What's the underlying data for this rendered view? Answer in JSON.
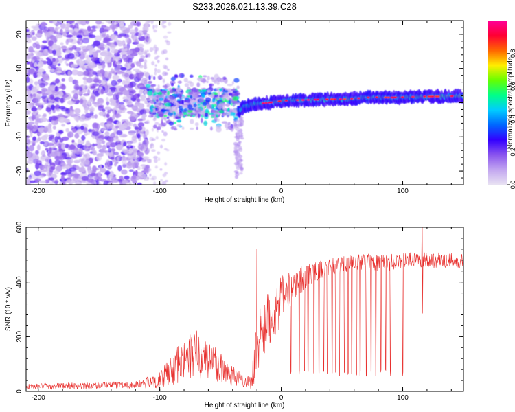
{
  "title": "S233.2026.021.13.39.C28",
  "colors": {
    "snr_line": "#e8302e",
    "spectrogram_low": "#d7c2f7",
    "spectrogram_mid": "#5a12e8",
    "axis": "#000000"
  },
  "chart_data": [
    {
      "id": "spectrogram",
      "type": "heatmap",
      "title": "S233.2026.021.13.39.C28",
      "xlabel": "Height of straight line (km)",
      "ylabel": "Frequency (Hz)",
      "xlim": [
        -210,
        150
      ],
      "ylim": [
        -24,
        24
      ],
      "xticks": [
        -200,
        -100,
        0,
        100
      ],
      "yticks": [
        -20,
        -10,
        0,
        10,
        20
      ],
      "colorbar": {
        "label": "Normalized spectral amplitude",
        "range": [
          0,
          1
        ],
        "ticks": [
          "0.0",
          "0.2",
          "0.4",
          "0.6",
          "0.8"
        ],
        "tick_values": [
          0.0,
          0.2,
          0.4,
          0.6,
          0.8
        ],
        "colormap": [
          "#e8e2f2",
          "#c2a6f0",
          "#8a55ee",
          "#3300ff",
          "#0066ff",
          "#00ccff",
          "#00ff88",
          "#66ff00",
          "#ffee00",
          "#ff6600",
          "#ff0033",
          "#ff0099"
        ]
      },
      "ridge": {
        "x": [
          -35,
          -30,
          -20,
          -10,
          0,
          10,
          20,
          30,
          40,
          50,
          60,
          70,
          80,
          90,
          100,
          110,
          120,
          130,
          140,
          150
        ],
        "freq": [
          -2.5,
          -1.0,
          -0.3,
          0.0,
          0.5,
          0.7,
          0.8,
          0.9,
          1.0,
          1.0,
          1.2,
          1.5,
          1.6,
          1.5,
          1.6,
          1.7,
          1.8,
          1.8,
          1.9,
          2.0
        ],
        "peak_amplitude": [
          0.35,
          0.55,
          0.7,
          0.75,
          0.8,
          0.85,
          0.85,
          0.85,
          0.9,
          0.9,
          0.85,
          0.85,
          0.9,
          0.9,
          0.85,
          0.85,
          0.8,
          0.8,
          0.8,
          0.85
        ]
      },
      "regions": [
        {
          "x": [
            -210,
            -110
          ],
          "description": "diffuse noise",
          "amplitude": 0.12,
          "freq_spread": 24
        },
        {
          "x": [
            -110,
            -35
          ],
          "description": "scattered signal",
          "amplitude": 0.3,
          "freq_spread": 8
        }
      ]
    },
    {
      "id": "snr",
      "type": "line",
      "xlabel": "Height of straight line (km)",
      "ylabel": "SNR (10 * v/v)",
      "xlim": [
        -210,
        150
      ],
      "ylim": [
        0,
        600
      ],
      "xticks": [
        -200,
        -100,
        0,
        100
      ],
      "yticks": [
        0,
        200,
        400,
        600
      ],
      "series": [
        {
          "name": "SNR",
          "x": [
            -210,
            -180,
            -150,
            -120,
            -100,
            -90,
            -80,
            -70,
            -60,
            -50,
            -40,
            -30,
            -25,
            -20,
            -10,
            0,
            10,
            20,
            30,
            40,
            50,
            60,
            70,
            80,
            90,
            100,
            110,
            120,
            130,
            140,
            150
          ],
          "y": [
            18,
            20,
            22,
            24,
            40,
            80,
            110,
            140,
            115,
            90,
            60,
            35,
            40,
            160,
            260,
            330,
            390,
            420,
            440,
            455,
            465,
            470,
            475,
            470,
            472,
            478,
            480,
            482,
            478,
            480,
            475
          ],
          "noise": [
            10,
            12,
            12,
            14,
            30,
            60,
            80,
            90,
            80,
            65,
            40,
            20,
            30,
            120,
            110,
            90,
            60,
            45,
            35,
            30,
            30,
            30,
            30,
            30,
            30,
            30,
            30,
            30,
            30,
            30,
            30
          ]
        }
      ],
      "spikes": [
        {
          "x": -20,
          "y": 520
        },
        {
          "x": 116,
          "y": 605
        },
        {
          "x": 116.5,
          "y": 285
        }
      ],
      "dropouts_x": [
        8,
        15,
        19,
        22,
        27,
        31,
        35,
        38,
        42,
        45,
        48,
        52,
        55,
        58,
        62,
        65,
        70,
        74,
        78,
        82,
        86,
        90,
        100
      ],
      "dropout_floor": 55
    }
  ]
}
